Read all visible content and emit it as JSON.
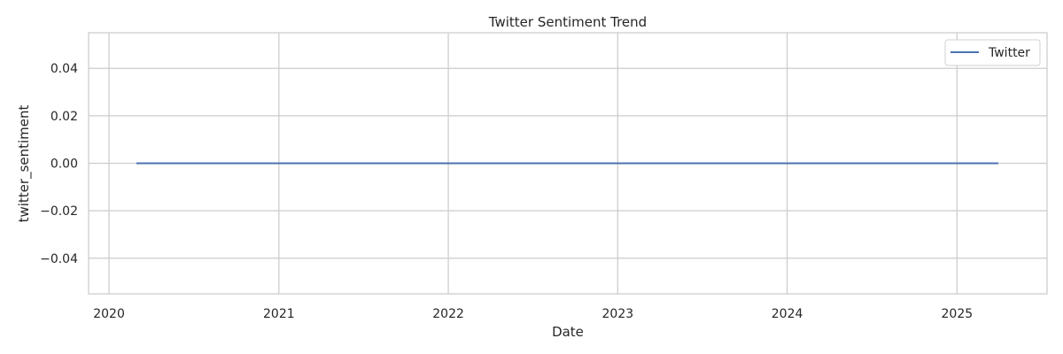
{
  "chart_data": {
    "type": "line",
    "title": "Twitter Sentiment Trend",
    "xlabel": "Date",
    "ylabel": "twitter_sentiment",
    "x_tick_labels": [
      "2020",
      "2021",
      "2022",
      "2023",
      "2024",
      "2025"
    ],
    "y_tick_labels": [
      "0.04",
      "0.02",
      "0.00",
      "−0.02",
      "−0.04"
    ],
    "xlim": [
      "2019-11-18",
      "2025-07-14"
    ],
    "ylim": [
      -0.055,
      0.055
    ],
    "grid": true,
    "legend_position": "top-right",
    "series": [
      {
        "name": "Twitter",
        "color": "#4c72b0",
        "points": [
          {
            "x": "2020-02-29",
            "y": 0.0
          },
          {
            "x": "2025-03-31",
            "y": 0.0
          }
        ]
      }
    ]
  }
}
